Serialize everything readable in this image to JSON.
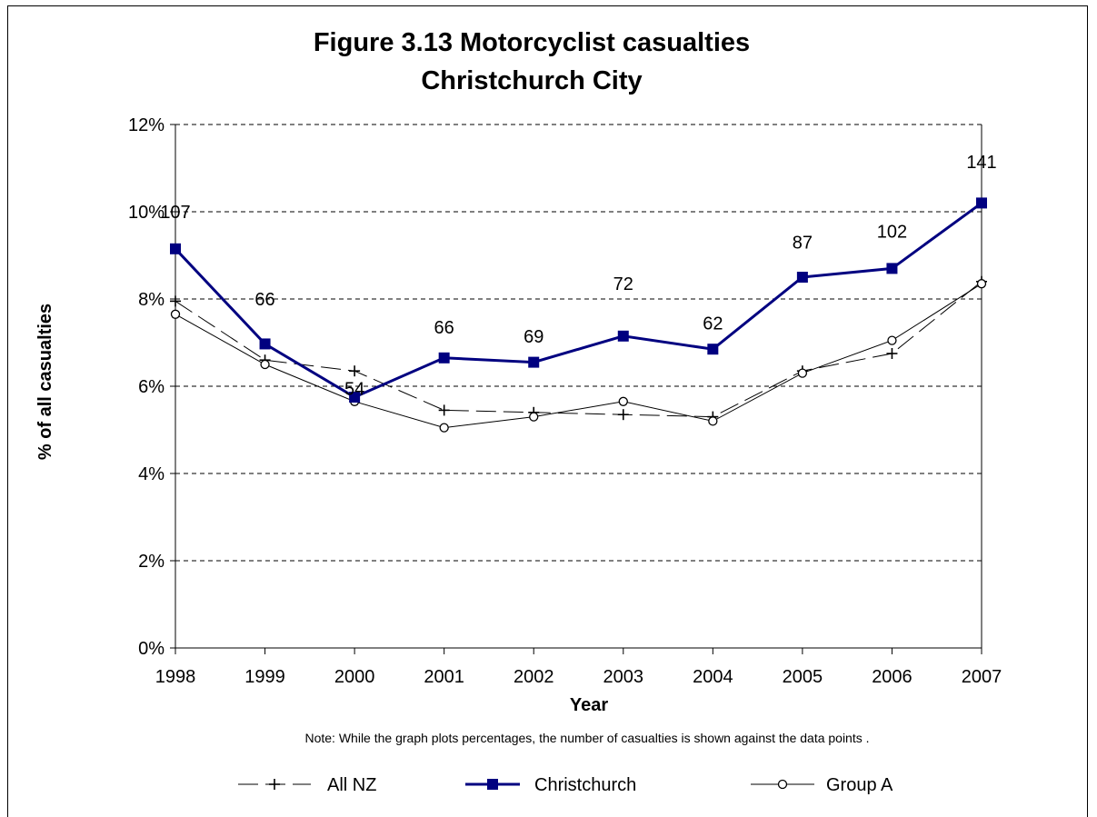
{
  "chart_data": {
    "type": "line",
    "title_lines": [
      "Figure 3.13 Motorcyclist casualties",
      "Christchurch City"
    ],
    "xlabel": "Year",
    "ylabel": "% of all casualties",
    "categories": [
      "1998",
      "1999",
      "2000",
      "2001",
      "2002",
      "2003",
      "2004",
      "2005",
      "2006",
      "2007"
    ],
    "ylim": [
      0,
      12
    ],
    "yticks": [
      0,
      2,
      4,
      6,
      8,
      10,
      12
    ],
    "ytick_labels": [
      "0%",
      "2%",
      "4%",
      "6%",
      "8%",
      "10%",
      "12%"
    ],
    "grid": "horizontal dashed",
    "series": [
      {
        "name": "All NZ",
        "values": [
          7.95,
          6.6,
          6.35,
          5.45,
          5.4,
          5.35,
          5.3,
          6.35,
          6.75,
          8.4
        ],
        "color": "#000000",
        "style": "dashed",
        "marker": "plus"
      },
      {
        "name": "Christchurch",
        "values": [
          9.15,
          6.97,
          5.75,
          6.65,
          6.55,
          7.15,
          6.85,
          8.5,
          8.7,
          10.2
        ],
        "color": "#000080",
        "style": "solid",
        "marker": "square"
      },
      {
        "name": "Group A",
        "values": [
          7.65,
          6.5,
          5.65,
          5.05,
          5.3,
          5.65,
          5.2,
          6.3,
          7.05,
          8.35
        ],
        "color": "#000000",
        "style": "solid",
        "marker": "circle"
      }
    ],
    "data_labels": [
      "107",
      "66",
      "54",
      "66",
      "69",
      "72",
      "62",
      "87",
      "102",
      "141"
    ],
    "label_y": [
      10.0,
      8.0,
      5.95,
      7.35,
      7.15,
      8.35,
      7.45,
      9.3,
      9.55,
      11.15
    ],
    "note": "Note: While the graph plots percentages, the number of casualties is shown against the data points .",
    "legend_position": "bottom"
  }
}
